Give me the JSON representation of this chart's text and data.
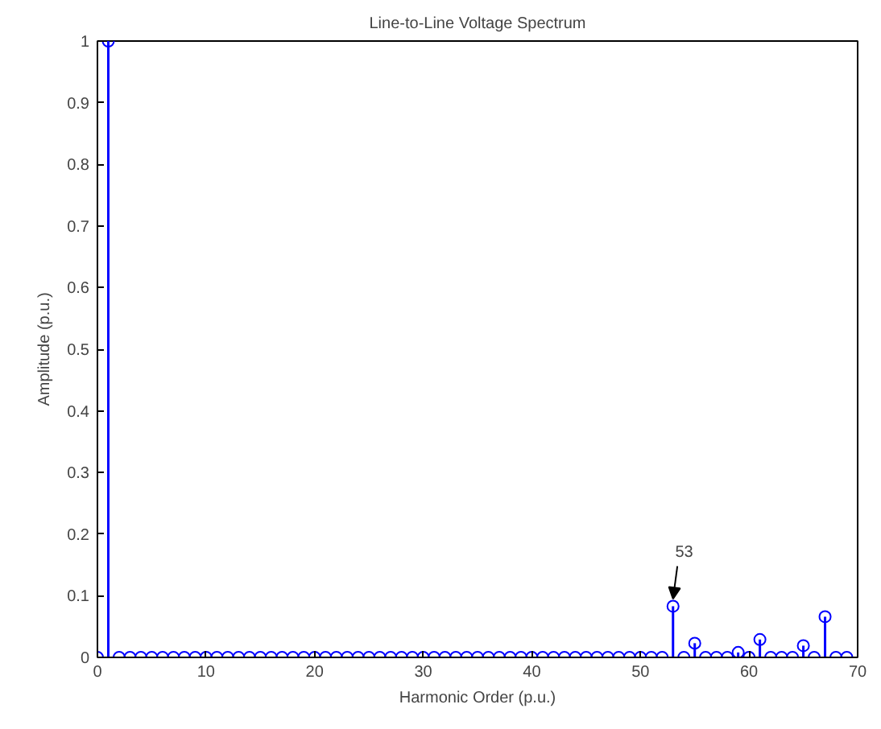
{
  "chart_data": {
    "type": "lollipop",
    "title": "Line-to-Line Voltage Spectrum",
    "xlabel": "Harmonic Order (p.u.)",
    "ylabel": "Amplitude (p.u.)",
    "x": [
      0,
      1,
      2,
      3,
      4,
      5,
      6,
      7,
      8,
      9,
      10,
      11,
      12,
      13,
      14,
      15,
      16,
      17,
      18,
      19,
      20,
      21,
      22,
      23,
      24,
      25,
      26,
      27,
      28,
      29,
      30,
      31,
      32,
      33,
      34,
      35,
      36,
      37,
      38,
      39,
      40,
      41,
      42,
      43,
      44,
      45,
      46,
      47,
      48,
      49,
      50,
      51,
      52,
      53,
      54,
      55,
      56,
      57,
      58,
      59,
      60,
      61,
      62,
      63,
      64,
      65,
      66,
      67,
      68,
      69
    ],
    "values": [
      0,
      1,
      0,
      0,
      0,
      0,
      0,
      0,
      0,
      0,
      0,
      0,
      0,
      0,
      0,
      0,
      0,
      0,
      0,
      0,
      0,
      0,
      0,
      0,
      0,
      0,
      0,
      0,
      0,
      0,
      0,
      0,
      0,
      0,
      0,
      0,
      0,
      0,
      0,
      0,
      0,
      0,
      0,
      0,
      0,
      0,
      0,
      0,
      0,
      0,
      0,
      0,
      0,
      0.083,
      0,
      0.023,
      0,
      0,
      0,
      0.008,
      0,
      0.029,
      0,
      0,
      0,
      0.019,
      0,
      0.066,
      0,
      0
    ],
    "color": "#0000ff",
    "marker": "circle",
    "grid": false,
    "xlim": [
      0,
      70
    ],
    "xticks": [
      0,
      10,
      20,
      30,
      40,
      50,
      60,
      70
    ],
    "ylim": [
      0,
      1
    ],
    "yticks": [
      0,
      0.1,
      0.2,
      0.3,
      0.4,
      0.5,
      0.6,
      0.7,
      0.8,
      0.9,
      1
    ],
    "annotations": [
      {
        "text": "53",
        "x": 53,
        "y": 0.083
      }
    ]
  }
}
